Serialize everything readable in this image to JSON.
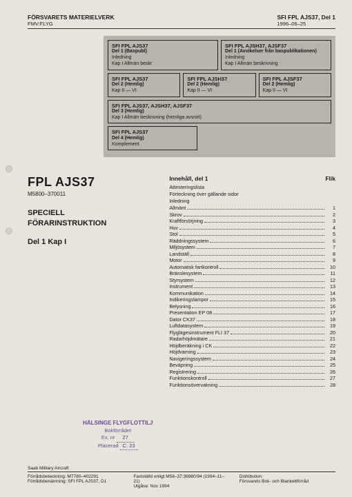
{
  "header": {
    "org": "FÖRSVARETS MATERIELVERK",
    "suborg": "FMV:FLYG",
    "doc": "SFI FPL AJS37, Del 1",
    "date": "1996–06–25"
  },
  "boxes": {
    "r1": [
      {
        "t": "SFI FPL AJS37",
        "s": "Del 1 (Baspubl)",
        "l1": "Inledning",
        "l2": "Kap I Allmän beskr"
      },
      {
        "t": "SFI FPL AJSH37, AJSF37",
        "s": "Del 1 (Avvikelser från baspublikationen)",
        "l1": "Inledning",
        "l2": "Kap I Allmän beskrivning"
      }
    ],
    "r2": [
      {
        "t": "SFI FPL AJS37",
        "s": "Del 2 (Hemlig)",
        "l1": "Kap II — VI"
      },
      {
        "t": "SFI FPL AJSH37",
        "s": "Del 2 (Hemlig)",
        "l1": "Kap II — VI"
      },
      {
        "t": "SFI FPL AJSF37",
        "s": "Del 2 (Hemlig)",
        "l1": "Kap II — VI"
      }
    ],
    "r3": [
      {
        "t": "SFI FPL AJS37, AJSH37, AJSF37",
        "s": "Del 3 (Hemlig)",
        "l1": "Kap I Allmän beskrivning (hemliga avsnitt)"
      }
    ],
    "r4": [
      {
        "t": "SFI FPL AJS37",
        "s": "Del 4 (Hemlig)",
        "l1": "Komplement"
      }
    ]
  },
  "left": {
    "title": "FPL AJS37",
    "code": "M5800–370011",
    "sub1": "SPECIELL",
    "sub2": "FÖRARINSTRUKTION",
    "part": "Del 1 Kap I"
  },
  "toc": {
    "head": "Innehåll, del 1",
    "flik": "Flik",
    "pre": [
      "Attesteringslista",
      "Förteckning över gällande sidor",
      "Inledning"
    ],
    "items": [
      {
        "l": "Allmänt",
        "n": "1"
      },
      {
        "l": "Skrov",
        "n": "2"
      },
      {
        "l": "Kraftförsörjning",
        "n": "3"
      },
      {
        "l": "Huv",
        "n": "4"
      },
      {
        "l": "Stol",
        "n": "5"
      },
      {
        "l": "Räddningssystem",
        "n": "6"
      },
      {
        "l": "Miljösystem",
        "n": "7"
      },
      {
        "l": "Landställ",
        "n": "8"
      },
      {
        "l": "Motor",
        "n": "9"
      },
      {
        "l": "Automatisk fartkontroll",
        "n": "10"
      },
      {
        "l": "Bränslesystem",
        "n": "11"
      },
      {
        "l": "Styrsystem",
        "n": "12"
      },
      {
        "l": "Instrument",
        "n": "13"
      },
      {
        "l": "Kommunikation",
        "n": "14"
      },
      {
        "l": "Indikeringslampor",
        "n": "15"
      },
      {
        "l": "Belysning",
        "n": "16"
      },
      {
        "l": "Presentation EP 08",
        "n": "17"
      },
      {
        "l": "Dator CK37",
        "n": "18"
      },
      {
        "l": "Luftdatasystem",
        "n": "19"
      },
      {
        "l": "Flyglägesinstrument FLI 37",
        "n": "20"
      },
      {
        "l": "Radarhöjdmätare",
        "n": "21"
      },
      {
        "l": "Höjdberäkning i CK",
        "n": "22"
      },
      {
        "l": "Höjdvarning",
        "n": "23"
      },
      {
        "l": "Navigeringssystem",
        "n": "24"
      },
      {
        "l": "Beväpning",
        "n": "25"
      },
      {
        "l": "Registrering",
        "n": "26"
      },
      {
        "l": "Funktionskontroll",
        "n": "27"
      },
      {
        "l": "Funktionsövervakning",
        "n": "28"
      }
    ]
  },
  "stamp": {
    "line1": "HÄLSINGE FLYGFLOTTILJ",
    "line2": "Bokförrådet",
    "ex_label": "Ex. nr",
    "ex_val": "27",
    "pl_label": "Placerad",
    "pl_val": "C. 23"
  },
  "saab": "Saab Military Aircraft",
  "footer": {
    "c1a": "Förrådsbeteckning: M7780–402291",
    "c1b": "Förrådsbenämning: SFI FPL AJS37, D1",
    "c2a": "Fastställd enligt M58–37:36980/94 (1994–11–21)",
    "c2b": "Utgåva: Nov 1994",
    "c3a": "Distribution:",
    "c3b": "Försvarets Bok- och Blankettförråd"
  }
}
